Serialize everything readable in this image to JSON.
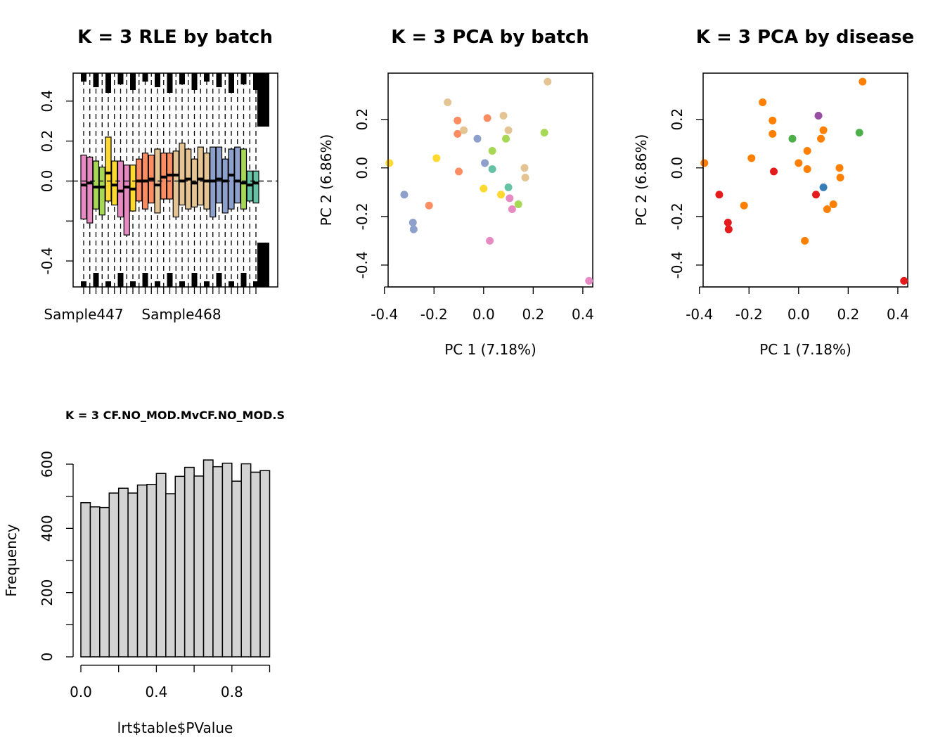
{
  "chart_data": [
    {
      "type": "boxplot",
      "title": "K = 3 RLE by batch",
      "x_tick_labels": [
        "Sample447",
        "Sample468"
      ],
      "y_ticks": [
        "-0.4",
        "0.0",
        "0.2",
        "0.4"
      ],
      "ylim": [
        -0.53,
        0.54
      ],
      "reference_line": 0,
      "boxes": [
        {
          "color": "#e78ac3",
          "q1": -0.19,
          "median": -0.02,
          "q3": 0.13
        },
        {
          "color": "#e78ac3",
          "q1": -0.21,
          "median": -0.01,
          "q3": 0.12
        },
        {
          "color": "#a6d854",
          "q1": -0.14,
          "median": -0.03,
          "q3": 0.1
        },
        {
          "color": "#a6d854",
          "q1": -0.17,
          "median": -0.03,
          "q3": 0.07
        },
        {
          "color": "#ffd92f",
          "q1": -0.1,
          "median": 0.04,
          "q3": 0.22
        },
        {
          "color": "#ffd92f",
          "q1": -0.12,
          "median": -0.02,
          "q3": 0.1
        },
        {
          "color": "#e78ac3",
          "q1": -0.18,
          "median": -0.05,
          "q3": 0.1
        },
        {
          "color": "#e78ac3",
          "q1": -0.27,
          "median": -0.03,
          "q3": 0.08
        },
        {
          "color": "#ffd92f",
          "q1": -0.15,
          "median": -0.04,
          "q3": 0.08
        },
        {
          "color": "#fc8d62",
          "q1": -0.1,
          "median": 0.0,
          "q3": 0.11
        },
        {
          "color": "#fc8d62",
          "q1": -0.14,
          "median": 0.0,
          "q3": 0.14
        },
        {
          "color": "#fc8d62",
          "q1": -0.11,
          "median": 0.01,
          "q3": 0.13
        },
        {
          "color": "#e5c494",
          "q1": -0.16,
          "median": -0.02,
          "q3": 0.16
        },
        {
          "color": "#fc8d62",
          "q1": -0.09,
          "median": 0.02,
          "q3": 0.14
        },
        {
          "color": "#fc8d62",
          "q1": -0.09,
          "median": 0.03,
          "q3": 0.14
        },
        {
          "color": "#e5c494",
          "q1": -0.18,
          "median": 0.03,
          "q3": 0.15
        },
        {
          "color": "#e5c494",
          "q1": -0.12,
          "median": 0.0,
          "q3": 0.19
        },
        {
          "color": "#e5c494",
          "q1": -0.14,
          "median": 0.01,
          "q3": 0.16
        },
        {
          "color": "#e5c494",
          "q1": -0.13,
          "median": -0.01,
          "q3": 0.11
        },
        {
          "color": "#e5c494",
          "q1": -0.12,
          "median": 0.01,
          "q3": 0.17
        },
        {
          "color": "#e5c494",
          "q1": -0.14,
          "median": 0.0,
          "q3": 0.14
        },
        {
          "color": "#8da0cb",
          "q1": -0.18,
          "median": 0.0,
          "q3": 0.17
        },
        {
          "color": "#8da0cb",
          "q1": -0.11,
          "median": 0.01,
          "q3": 0.17
        },
        {
          "color": "#8da0cb",
          "q1": -0.16,
          "median": 0.0,
          "q3": 0.11
        },
        {
          "color": "#8da0cb",
          "q1": -0.14,
          "median": 0.03,
          "q3": 0.16
        },
        {
          "color": "#8da0cb",
          "q1": -0.11,
          "median": 0.0,
          "q3": 0.17
        },
        {
          "color": "#a6d854",
          "q1": -0.14,
          "median": -0.01,
          "q3": 0.16
        },
        {
          "color": "#66c2a5",
          "q1": -0.1,
          "median": -0.02,
          "q3": 0.05
        },
        {
          "color": "#66c2a5",
          "q1": -0.11,
          "median": -0.01,
          "q3": 0.05
        }
      ]
    },
    {
      "type": "scatter",
      "title": "K = 3 PCA by batch",
      "xlabel": "PC 1 (7.18%)",
      "ylabel": "PC 2 (6.86%)",
      "x_ticks": [
        "-0.4",
        "-0.2",
        "0.0",
        "0.2",
        "0.4"
      ],
      "y_ticks": [
        "-0.4",
        "-0.2",
        "0.0",
        "0.2"
      ],
      "xlim": [
        -0.385,
        0.44
      ],
      "ylim": [
        -0.49,
        0.39
      ],
      "points": [
        {
          "x": -0.38,
          "y": 0.02,
          "color": "#ffd92f"
        },
        {
          "x": -0.32,
          "y": -0.11,
          "color": "#8da0cb"
        },
        {
          "x": -0.285,
          "y": -0.225,
          "color": "#8da0cb"
        },
        {
          "x": -0.282,
          "y": -0.253,
          "color": "#8da0cb"
        },
        {
          "x": -0.22,
          "y": -0.155,
          "color": "#fc8d62"
        },
        {
          "x": -0.19,
          "y": 0.04,
          "color": "#ffd92f"
        },
        {
          "x": -0.145,
          "y": 0.27,
          "color": "#e5c494"
        },
        {
          "x": -0.105,
          "y": 0.195,
          "color": "#fc8d62"
        },
        {
          "x": -0.105,
          "y": 0.14,
          "color": "#fc8d62"
        },
        {
          "x": -0.1,
          "y": -0.015,
          "color": "#fc8d62"
        },
        {
          "x": -0.08,
          "y": 0.155,
          "color": "#e5c494"
        },
        {
          "x": -0.025,
          "y": 0.12,
          "color": "#8da0cb"
        },
        {
          "x": 0.0,
          "y": -0.085,
          "color": "#ffd92f"
        },
        {
          "x": 0.005,
          "y": 0.02,
          "color": "#8da0cb"
        },
        {
          "x": 0.015,
          "y": 0.205,
          "color": "#fc8d62"
        },
        {
          "x": 0.025,
          "y": -0.3,
          "color": "#e78ac3"
        },
        {
          "x": 0.035,
          "y": 0.07,
          "color": "#a6d854"
        },
        {
          "x": 0.035,
          "y": -0.005,
          "color": "#66c2a5"
        },
        {
          "x": 0.07,
          "y": -0.11,
          "color": "#ffd92f"
        },
        {
          "x": 0.08,
          "y": 0.215,
          "color": "#e5c494"
        },
        {
          "x": 0.09,
          "y": 0.12,
          "color": "#a6d854"
        },
        {
          "x": 0.1,
          "y": 0.155,
          "color": "#e5c494"
        },
        {
          "x": 0.1,
          "y": -0.08,
          "color": "#66c2a5"
        },
        {
          "x": 0.105,
          "y": -0.125,
          "color": "#e78ac3"
        },
        {
          "x": 0.115,
          "y": -0.17,
          "color": "#e78ac3"
        },
        {
          "x": 0.14,
          "y": -0.15,
          "color": "#a6d854"
        },
        {
          "x": 0.165,
          "y": 0.0,
          "color": "#e5c494"
        },
        {
          "x": 0.168,
          "y": -0.04,
          "color": "#e5c494"
        },
        {
          "x": 0.245,
          "y": 0.145,
          "color": "#a6d854"
        },
        {
          "x": 0.258,
          "y": 0.355,
          "color": "#e5c494"
        },
        {
          "x": 0.425,
          "y": -0.465,
          "color": "#e78ac3"
        }
      ]
    },
    {
      "type": "scatter",
      "title": "K = 3 PCA by disease",
      "xlabel": "PC 1 (7.18%)",
      "ylabel": "PC 2 (6.86%)",
      "x_ticks": [
        "-0.4",
        "-0.2",
        "0.0",
        "0.2",
        "0.4"
      ],
      "y_ticks": [
        "-0.4",
        "-0.2",
        "0.0",
        "0.2"
      ],
      "xlim": [
        -0.385,
        0.44
      ],
      "ylim": [
        -0.49,
        0.39
      ],
      "points": [
        {
          "x": -0.38,
          "y": 0.02,
          "color": "#ff7f00"
        },
        {
          "x": -0.32,
          "y": -0.11,
          "color": "#e41a1c"
        },
        {
          "x": -0.285,
          "y": -0.225,
          "color": "#e41a1c"
        },
        {
          "x": -0.282,
          "y": -0.253,
          "color": "#e41a1c"
        },
        {
          "x": -0.22,
          "y": -0.155,
          "color": "#ff7f00"
        },
        {
          "x": -0.19,
          "y": 0.04,
          "color": "#ff7f00"
        },
        {
          "x": -0.145,
          "y": 0.27,
          "color": "#ff7f00"
        },
        {
          "x": -0.105,
          "y": 0.195,
          "color": "#ff7f00"
        },
        {
          "x": -0.105,
          "y": 0.14,
          "color": "#ff7f00"
        },
        {
          "x": -0.1,
          "y": -0.015,
          "color": "#e41a1c"
        },
        {
          "x": -0.025,
          "y": 0.12,
          "color": "#4daf4a"
        },
        {
          "x": 0.0,
          "y": 0.02,
          "color": "#ff7f00"
        },
        {
          "x": 0.025,
          "y": -0.3,
          "color": "#ff7f00"
        },
        {
          "x": 0.035,
          "y": 0.07,
          "color": "#ff7f00"
        },
        {
          "x": 0.035,
          "y": -0.005,
          "color": "#ff7f00"
        },
        {
          "x": 0.07,
          "y": -0.11,
          "color": "#e41a1c"
        },
        {
          "x": 0.08,
          "y": 0.215,
          "color": "#984ea3"
        },
        {
          "x": 0.09,
          "y": 0.12,
          "color": "#ff7f00"
        },
        {
          "x": 0.1,
          "y": 0.155,
          "color": "#ff7f00"
        },
        {
          "x": 0.1,
          "y": -0.08,
          "color": "#377eb8"
        },
        {
          "x": 0.115,
          "y": -0.17,
          "color": "#ff7f00"
        },
        {
          "x": 0.14,
          "y": -0.15,
          "color": "#ff7f00"
        },
        {
          "x": 0.165,
          "y": 0.0,
          "color": "#ff7f00"
        },
        {
          "x": 0.168,
          "y": -0.04,
          "color": "#ff7f00"
        },
        {
          "x": 0.245,
          "y": 0.145,
          "color": "#4daf4a"
        },
        {
          "x": 0.258,
          "y": 0.355,
          "color": "#ff7f00"
        },
        {
          "x": 0.425,
          "y": -0.465,
          "color": "#e41a1c"
        }
      ]
    },
    {
      "type": "bar",
      "title": "K = 3 CF.NO_MOD.MvCF.NO_MOD.S",
      "xlabel": "lrt$table$PValue",
      "ylabel": "Frequency",
      "x_ticks": [
        "0.0",
        "0.4",
        "0.8"
      ],
      "y_ticks": [
        "0",
        "200",
        "400",
        "600"
      ],
      "xlim": [
        -0.04,
        1.0
      ],
      "ylim": [
        0,
        640
      ],
      "bin_width": 0.05,
      "bin_starts": [
        0.0,
        0.05,
        0.1,
        0.15,
        0.2,
        0.25,
        0.3,
        0.35,
        0.4,
        0.45,
        0.5,
        0.55,
        0.6,
        0.65,
        0.7,
        0.75,
        0.8,
        0.85,
        0.9,
        0.95
      ],
      "values": [
        480,
        467,
        465,
        510,
        525,
        510,
        535,
        537,
        571,
        508,
        562,
        590,
        563,
        613,
        592,
        603,
        547,
        601,
        575,
        580
      ],
      "bar_color": "#d3d3d3"
    }
  ]
}
